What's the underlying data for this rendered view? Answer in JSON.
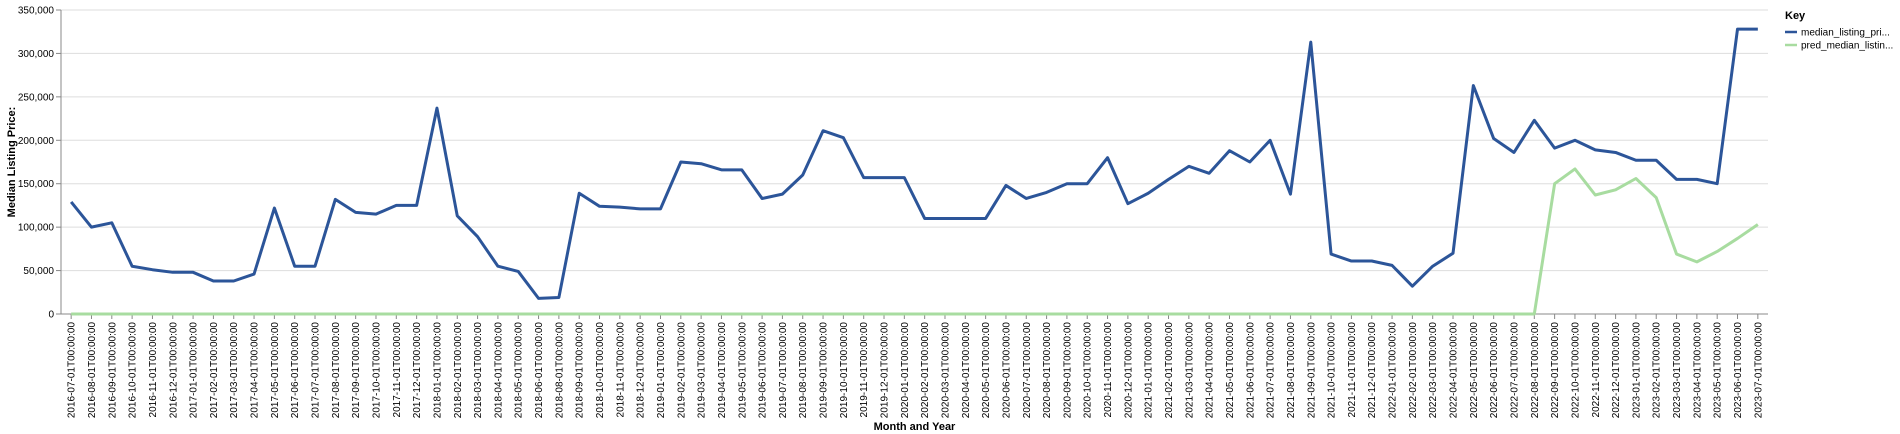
{
  "chart_data": {
    "type": "line",
    "xlabel": "Month and Year",
    "ylabel": "Median Listing Price:",
    "ylim": [
      0,
      350000
    ],
    "yticks": [
      0,
      50000,
      100000,
      150000,
      200000,
      250000,
      300000,
      350000
    ],
    "ytick_labels": [
      "0",
      "50,000",
      "100,000",
      "150,000",
      "200,000",
      "250,000",
      "300,000",
      "350,000"
    ],
    "grid": true,
    "legend": {
      "title": "Key",
      "position": "top-right"
    },
    "colors": {
      "median": "#2c5599",
      "pred": "#a8dca0"
    },
    "x": [
      "2016-07-01T00:00:00",
      "2016-08-01T00:00:00",
      "2016-09-01T00:00:00",
      "2016-10-01T00:00:00",
      "2016-11-01T00:00:00",
      "2016-12-01T00:00:00",
      "2017-01-01T00:00:00",
      "2017-02-01T00:00:00",
      "2017-03-01T00:00:00",
      "2017-04-01T00:00:00",
      "2017-05-01T00:00:00",
      "2017-06-01T00:00:00",
      "2017-07-01T00:00:00",
      "2017-08-01T00:00:00",
      "2017-09-01T00:00:00",
      "2017-10-01T00:00:00",
      "2017-11-01T00:00:00",
      "2017-12-01T00:00:00",
      "2018-01-01T00:00:00",
      "2018-02-01T00:00:00",
      "2018-03-01T00:00:00",
      "2018-04-01T00:00:00",
      "2018-05-01T00:00:00",
      "2018-06-01T00:00:00",
      "2018-08-01T00:00:00",
      "2018-09-01T00:00:00",
      "2018-10-01T00:00:00",
      "2018-11-01T00:00:00",
      "2018-12-01T00:00:00",
      "2019-01-01T00:00:00",
      "2019-02-01T00:00:00",
      "2019-03-01T00:00:00",
      "2019-04-01T00:00:00",
      "2019-05-01T00:00:00",
      "2019-06-01T00:00:00",
      "2019-07-01T00:00:00",
      "2019-08-01T00:00:00",
      "2019-09-01T00:00:00",
      "2019-10-01T00:00:00",
      "2019-11-01T00:00:00",
      "2019-12-01T00:00:00",
      "2020-01-01T00:00:00",
      "2020-02-01T00:00:00",
      "2020-03-01T00:00:00",
      "2020-04-01T00:00:00",
      "2020-05-01T00:00:00",
      "2020-06-01T00:00:00",
      "2020-07-01T00:00:00",
      "2020-08-01T00:00:00",
      "2020-09-01T00:00:00",
      "2020-10-01T00:00:00",
      "2020-11-01T00:00:00",
      "2020-12-01T00:00:00",
      "2021-01-01T00:00:00",
      "2021-02-01T00:00:00",
      "2021-03-01T00:00:00",
      "2021-04-01T00:00:00",
      "2021-05-01T00:00:00",
      "2021-06-01T00:00:00",
      "2021-07-01T00:00:00",
      "2021-08-01T00:00:00",
      "2021-09-01T00:00:00",
      "2021-10-01T00:00:00",
      "2021-11-01T00:00:00",
      "2021-12-01T00:00:00",
      "2022-01-01T00:00:00",
      "2022-02-01T00:00:00",
      "2022-03-01T00:00:00",
      "2022-04-01T00:00:00",
      "2022-05-01T00:00:00",
      "2022-06-01T00:00:00",
      "2022-07-01T00:00:00",
      "2022-08-01T00:00:00",
      "2022-09-01T00:00:00",
      "2022-10-01T00:00:00",
      "2022-11-01T00:00:00",
      "2022-12-01T00:00:00",
      "2023-01-01T00:00:00",
      "2023-02-01T00:00:00",
      "2023-03-01T00:00:00",
      "2023-04-01T00:00:00",
      "2023-05-01T00:00:00",
      "2023-06-01T00:00:00",
      "2023-07-01T00:00:00"
    ],
    "series": [
      {
        "name": "median_listing_pri...",
        "color": "#2c5599",
        "values": [
          129000,
          100000,
          105000,
          55000,
          51000,
          48000,
          48000,
          38000,
          38000,
          46000,
          122000,
          55000,
          55000,
          132000,
          117000,
          115000,
          125000,
          125000,
          237000,
          113000,
          89000,
          55000,
          49000,
          18000,
          19000,
          139000,
          124000,
          123000,
          121000,
          121000,
          175000,
          173000,
          166000,
          166000,
          133000,
          138000,
          160000,
          211000,
          203000,
          157000,
          157000,
          157000,
          110000,
          110000,
          110000,
          110000,
          148000,
          133000,
          140000,
          150000,
          150000,
          180000,
          127000,
          139000,
          155000,
          170000,
          162000,
          188000,
          175000,
          200000,
          138000,
          313000,
          69000,
          61000,
          61000,
          56000,
          32000,
          55000,
          70000,
          263000,
          202000,
          186000,
          223000,
          191000,
          200000,
          189000,
          186000,
          177000,
          177000,
          155000,
          155000,
          150000,
          328000,
          328000
        ]
      },
      {
        "name": "pred_median_listin...",
        "color": "#a8dca0",
        "values": [
          0,
          0,
          0,
          0,
          0,
          0,
          0,
          0,
          0,
          0,
          0,
          0,
          0,
          0,
          0,
          0,
          0,
          0,
          0,
          0,
          0,
          0,
          0,
          0,
          0,
          0,
          0,
          0,
          0,
          0,
          0,
          0,
          0,
          0,
          0,
          0,
          0,
          0,
          0,
          0,
          0,
          0,
          0,
          0,
          0,
          0,
          0,
          0,
          0,
          0,
          0,
          0,
          0,
          0,
          0,
          0,
          0,
          0,
          0,
          0,
          0,
          0,
          0,
          0,
          0,
          0,
          0,
          0,
          0,
          0,
          0,
          0,
          0,
          150000,
          167000,
          137000,
          143000,
          156000,
          134000,
          69000,
          60000,
          72000,
          87000,
          103000
        ]
      }
    ]
  }
}
